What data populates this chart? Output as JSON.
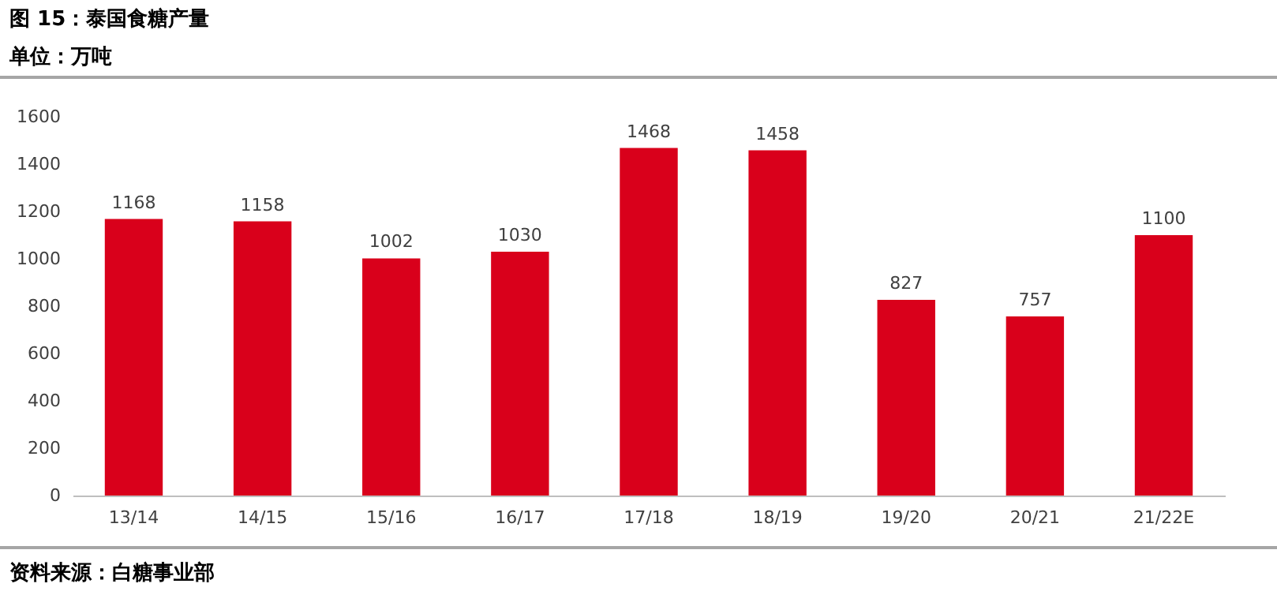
{
  "chart_data": {
    "type": "bar",
    "title": "图 15：泰国食糖产量",
    "subtitle": "单位：万吨",
    "categories": [
      "13/14",
      "14/15",
      "15/16",
      "16/17",
      "17/18",
      "18/19",
      "19/20",
      "20/21",
      "21/22E"
    ],
    "values": [
      1168,
      1158,
      1002,
      1030,
      1468,
      1458,
      827,
      757,
      1100
    ],
    "color": "#d9001b",
    "ylim": [
      0,
      1600
    ],
    "yticks": [
      0,
      200,
      400,
      600,
      800,
      1000,
      1200,
      1400,
      1600
    ],
    "grid": false,
    "data_labels": true,
    "annotations": [
      "资料来源：白糖事业部"
    ]
  }
}
